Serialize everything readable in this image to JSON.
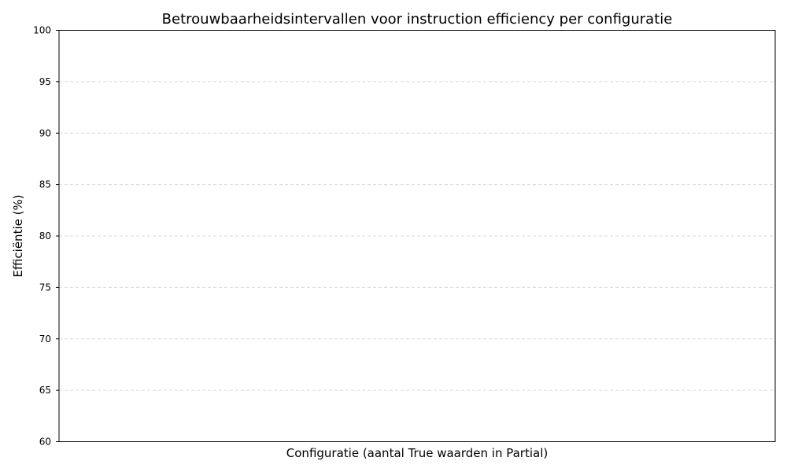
{
  "chart_data": {
    "type": "bar",
    "title": "Betrouwbaarheidsintervallen voor instruction efficiency per configuratie",
    "xlabel": "Configuratie (aantal True waarden in Partial)",
    "ylabel": "Efficiëntie (%)",
    "ylim": [
      60,
      100
    ],
    "yticks": [
      60,
      65,
      70,
      75,
      80,
      85,
      90,
      95,
      100
    ],
    "categories": [],
    "series": [],
    "grid": {
      "y": true,
      "x": false,
      "style": "dashed"
    },
    "legend": "none"
  }
}
